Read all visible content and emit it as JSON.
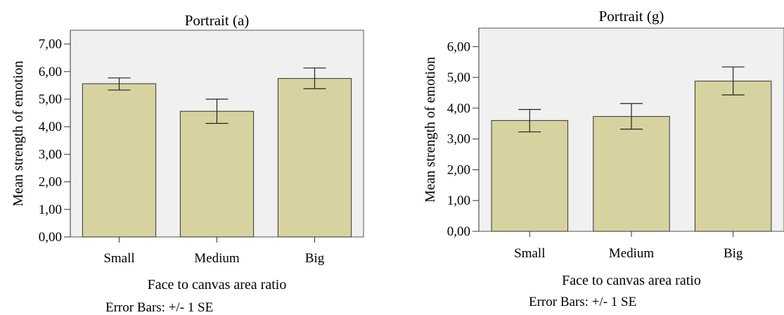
{
  "chart_data": [
    {
      "type": "bar",
      "title": "Portrait (a)",
      "xlabel": "Face to canvas area ratio",
      "ylabel": "Mean strength of emotion",
      "footnote": "Error Bars: +/- 1 SE",
      "categories": [
        "Small",
        "Medium",
        "Big"
      ],
      "values": [
        5.56,
        4.56,
        5.75
      ],
      "error_low": [
        5.33,
        4.12,
        5.38
      ],
      "error_high": [
        5.77,
        5.0,
        6.13
      ],
      "ylim": [
        0,
        7.5
      ],
      "yticks": [
        0,
        1,
        2,
        3,
        4,
        5,
        6,
        7
      ],
      "ytick_labels": [
        "0,00",
        "1,00",
        "2,00",
        "3,00",
        "4,00",
        "5,00",
        "6,00",
        "7,00"
      ],
      "bar_color": "#d6d3a0",
      "background_color": "#f0f0f0",
      "grid": false
    },
    {
      "type": "bar",
      "title": "Portrait (g)",
      "xlabel": "Face to canvas area ratio",
      "ylabel": "Mean strength of emotion",
      "footnote": "Error Bars: +/- 1 SE",
      "categories": [
        "Small",
        "Medium",
        "Big"
      ],
      "values": [
        3.6,
        3.73,
        4.88
      ],
      "error_low": [
        3.23,
        3.32,
        4.43
      ],
      "error_high": [
        3.96,
        4.15,
        5.34
      ],
      "ylim": [
        0,
        6.6
      ],
      "yticks": [
        0,
        1,
        2,
        3,
        4,
        5,
        6
      ],
      "ytick_labels": [
        "0,00",
        "1,00",
        "2,00",
        "3,00",
        "4,00",
        "5,00",
        "6,00"
      ],
      "bar_color": "#d6d3a0",
      "background_color": "#f0f0f0",
      "grid": false
    }
  ]
}
